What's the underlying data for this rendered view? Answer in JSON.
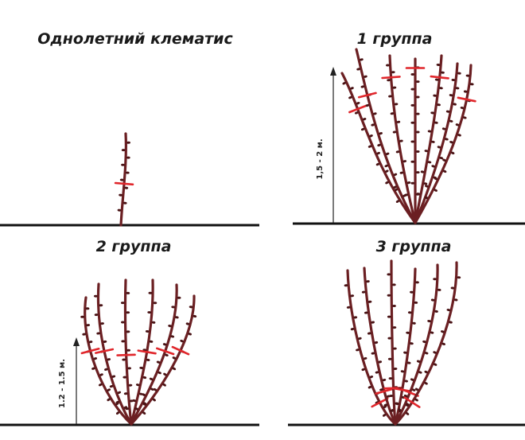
{
  "panels": {
    "annual": {
      "title": "Однолетний клематис"
    },
    "group1": {
      "title": "1 группа",
      "height_label": "1,5 - 2 м."
    },
    "group2": {
      "title": "2 группа",
      "height_label": "1.2 - 1.5 м."
    },
    "group3": {
      "title": "3 группа"
    }
  },
  "colors": {
    "stem": "#6b1f22",
    "bud": "#4a1416",
    "cut_mark": "#e0262b",
    "ground": "#111111"
  }
}
